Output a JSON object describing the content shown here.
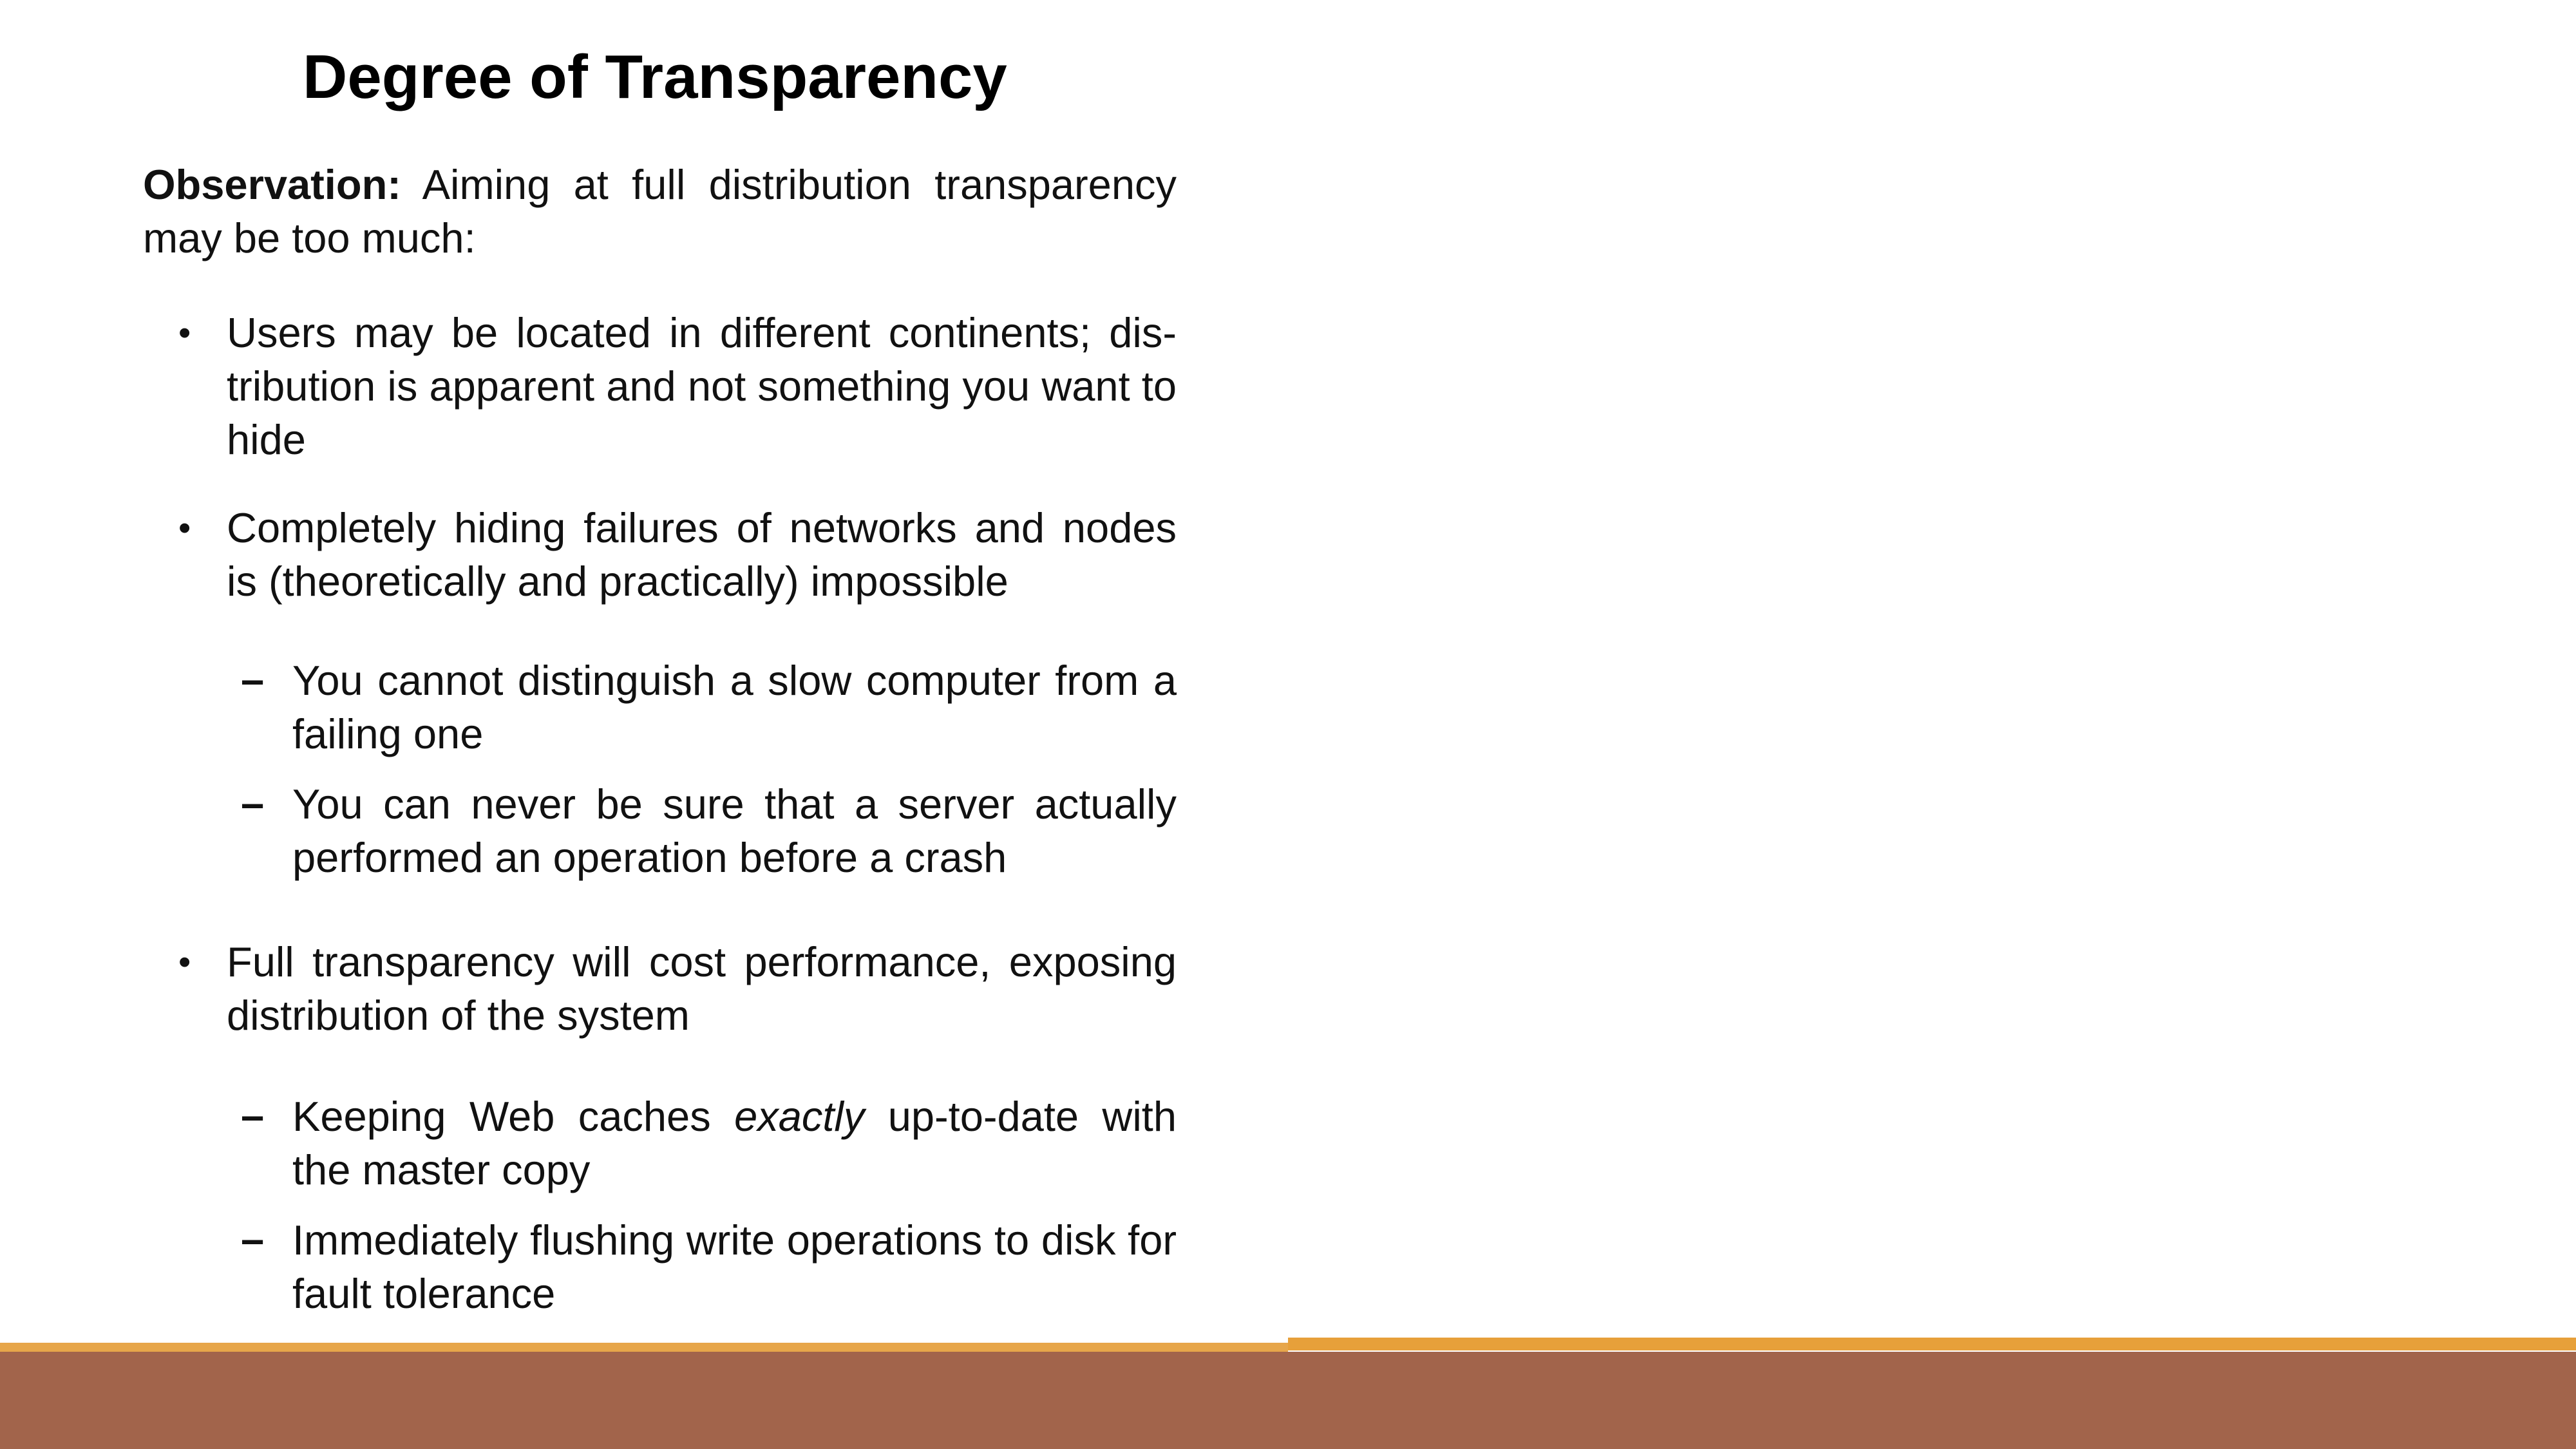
{
  "slide": {
    "title": "Degree of Transparency",
    "observation": {
      "label": "Observation:",
      "text": "Aiming at full distribution transparency may be too much:"
    },
    "bullets": [
      {
        "text": "Users may be located in different continents; dis-tribution is apparent and not something you want to hide",
        "subitems": []
      },
      {
        "text": "Completely hiding failures of networks and nodes is (theoretically and practically) impossible",
        "subitems": [
          {
            "text": "You cannot distinguish a slow computer from a failing one"
          },
          {
            "text": "You can never be sure that a server actually performed an operation before a crash"
          }
        ]
      },
      {
        "text": "Full transparency will cost performance, exposing distribution of the system",
        "subitems": [
          {
            "pre": "Keeping Web caches ",
            "em": "exactly",
            "post": " up-to-date with the master copy"
          },
          {
            "text": "Immediately flushing write operations to disk for fault tolerance"
          }
        ]
      }
    ],
    "bullet_marker": "•",
    "sub_marker": "–"
  },
  "theme": {
    "accent_line_color": "#e7a03a",
    "footer_band_color": "#a2644b",
    "background_color": "#ffffff"
  }
}
